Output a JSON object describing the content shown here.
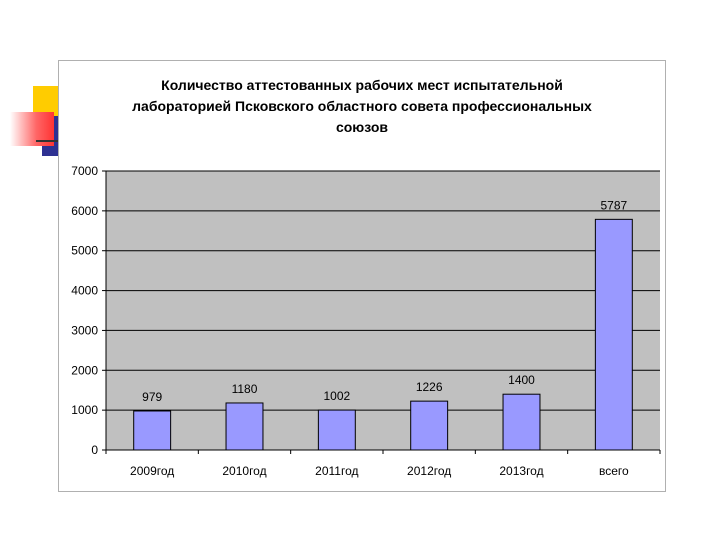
{
  "chart_data": {
    "type": "bar",
    "title_lines": [
      "Количество аттестованных рабочих мест испытательной",
      "лабораторией Псковского областного совета профессиональных",
      "союзов"
    ],
    "categories": [
      "2009год",
      "2010год",
      "2011год",
      "2012год",
      "2013год",
      "всего"
    ],
    "values": [
      979,
      1180,
      1002,
      1226,
      1400,
      5787
    ],
    "ylim": [
      0,
      7000
    ],
    "yticks": [
      0,
      1000,
      2000,
      3000,
      4000,
      5000,
      6000,
      7000
    ],
    "grid": true,
    "legend": "none",
    "colors": {
      "bar_fill": "#9999ff",
      "bar_stroke": "#000000",
      "plot_bg": "#c0c0c0",
      "grid": "#000000"
    }
  }
}
